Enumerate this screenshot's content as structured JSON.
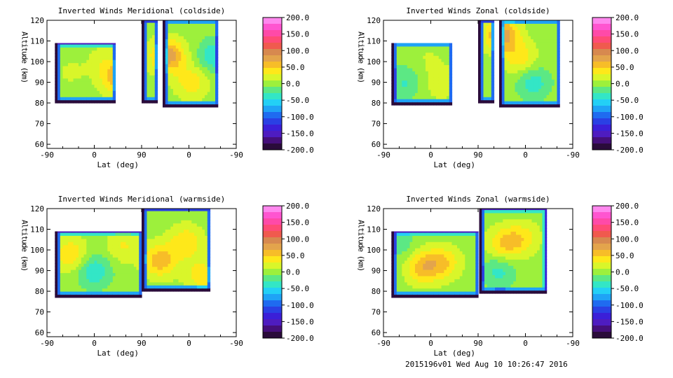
{
  "footer": "2015196v01 Wed Aug 10 10:26:47 2016",
  "colorbar": {
    "labels": [
      "200.0",
      "150.0",
      "100.0",
      "50.0",
      "0.0",
      "-50.0",
      "-100.0",
      "-150.0",
      "-200.0"
    ],
    "colors": [
      "#ff88ee",
      "#ff55d0",
      "#ff4aa8",
      "#ff4b76",
      "#f05a4e",
      "#d7894f",
      "#e3a44c",
      "#f7bd28",
      "#fee81a",
      "#d9f62a",
      "#9df03c",
      "#5ce884",
      "#33e6c6",
      "#23d0f6",
      "#1fa3f6",
      "#1f6bf0",
      "#2a40e4",
      "#3b1fd8",
      "#4e1cc0",
      "#450f7a",
      "#2a0b3a"
    ]
  },
  "chart_data": [
    {
      "type": "heatmap",
      "title": "Inverted Winds Meridional (coldside)",
      "xlabel": "Lat (deg)",
      "ylabel": "Altitude (km)",
      "xticks": [
        "-90",
        "0",
        "90",
        "0",
        "-90"
      ],
      "yticks": [
        "60",
        "70",
        "80",
        "90",
        "100",
        "110",
        "120"
      ],
      "ylim": [
        58,
        120
      ],
      "clim": [
        -200,
        200
      ],
      "blobs": [
        {
          "lat": -45,
          "alt": 95,
          "value": 12
        },
        {
          "lat": 45,
          "alt": 92,
          "value": 60
        },
        {
          "lat": 20,
          "alt": 100,
          "value": 20
        },
        {
          "lat": 140,
          "alt": 103,
          "value": 80
        },
        {
          "lat": 185,
          "alt": 90,
          "value": 40
        },
        {
          "lat": 230,
          "alt": 103,
          "value": -45
        }
      ]
    },
    {
      "type": "heatmap",
      "title": "Inverted Winds Zonal (coldside)",
      "xlabel": "Lat (deg)",
      "ylabel": "Altitude (km)",
      "xticks": [
        "-90",
        "0",
        "90",
        "0",
        "-90"
      ],
      "yticks": [
        "60",
        "70",
        "80",
        "90",
        "100",
        "110",
        "120"
      ],
      "ylim": [
        58,
        120
      ],
      "clim": [
        -200,
        200
      ],
      "blobs": [
        {
          "lat": -50,
          "alt": 90,
          "value": -30
        },
        {
          "lat": 20,
          "alt": 90,
          "value": 25
        },
        {
          "lat": -5,
          "alt": 102,
          "value": 10
        },
        {
          "lat": 135,
          "alt": 113,
          "value": 80
        },
        {
          "lat": 170,
          "alt": 102,
          "value": 40
        },
        {
          "lat": 195,
          "alt": 90,
          "value": -40
        }
      ]
    },
    {
      "type": "heatmap",
      "title": "Inverted Winds Meridional (warmside)",
      "xlabel": "Lat (deg)",
      "ylabel": "Altitude (km)",
      "xticks": [
        "-90",
        "0",
        "90",
        "0",
        "-90"
      ],
      "yticks": [
        "60",
        "70",
        "80",
        "90",
        "100",
        "110",
        "120"
      ],
      "ylim": [
        58,
        120
      ],
      "clim": [
        -200,
        200
      ],
      "blobs": [
        {
          "lat": -45,
          "alt": 98,
          "value": 45
        },
        {
          "lat": 0,
          "alt": 90,
          "value": -45
        },
        {
          "lat": 55,
          "alt": 102,
          "value": 30
        },
        {
          "lat": 125,
          "alt": 95,
          "value": 60
        },
        {
          "lat": 175,
          "alt": 104,
          "value": 45
        },
        {
          "lat": 205,
          "alt": 88,
          "value": 40
        }
      ]
    },
    {
      "type": "heatmap",
      "title": "Inverted Winds Zonal (warmside)",
      "xlabel": "Lat (deg)",
      "ylabel": "Altitude (km)",
      "xticks": [
        "-90",
        "0",
        "90",
        "0",
        "-90"
      ],
      "yticks": [
        "60",
        "70",
        "80",
        "90",
        "100",
        "110",
        "120"
      ],
      "ylim": [
        58,
        120
      ],
      "clim": [
        -200,
        200
      ],
      "blobs": [
        {
          "lat": -15,
          "alt": 92,
          "value": 60
        },
        {
          "lat": 25,
          "alt": 94,
          "value": 45
        },
        {
          "lat": -55,
          "alt": 102,
          "value": -20
        },
        {
          "lat": 140,
          "alt": 103,
          "value": 50
        },
        {
          "lat": 175,
          "alt": 106,
          "value": 35
        },
        {
          "lat": 130,
          "alt": 90,
          "value": -35
        }
      ]
    }
  ]
}
